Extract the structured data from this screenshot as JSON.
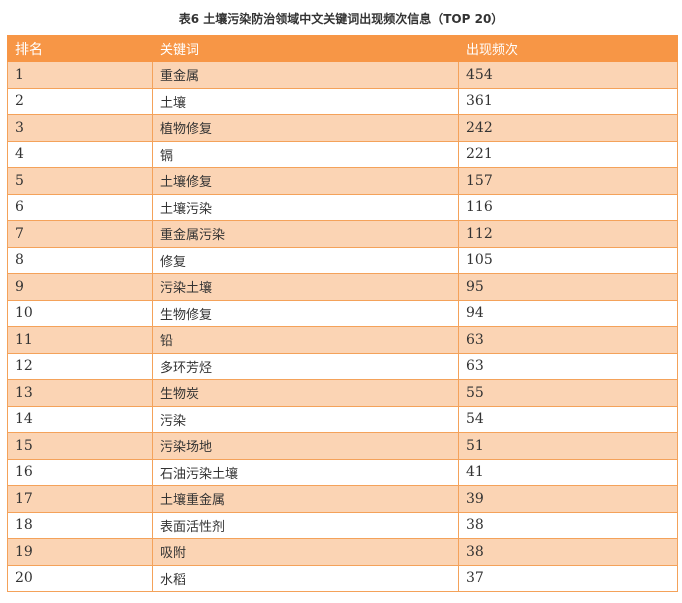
{
  "title": "表6  土壤污染防治领域中文关键词出现频次信息（TOP 20）",
  "colors": {
    "header_bg": "#f79646",
    "odd_row_bg": "#fbd4b4",
    "border": "#f4a25a"
  },
  "table": {
    "headers": [
      "排名",
      "关键词",
      "出现频次"
    ],
    "rows": [
      [
        "1",
        "重金属",
        "454"
      ],
      [
        "2",
        "土壤",
        "361"
      ],
      [
        "3",
        "植物修复",
        "242"
      ],
      [
        "4",
        "镉",
        "221"
      ],
      [
        "5",
        "土壤修复",
        "157"
      ],
      [
        "6",
        "土壤污染",
        "116"
      ],
      [
        "7",
        "重金属污染",
        "112"
      ],
      [
        "8",
        "修复",
        "105"
      ],
      [
        "9",
        "污染土壤",
        "95"
      ],
      [
        "10",
        "生物修复",
        "94"
      ],
      [
        "11",
        "铅",
        "63"
      ],
      [
        "12",
        "多环芳烃",
        "63"
      ],
      [
        "13",
        "生物炭",
        "55"
      ],
      [
        "14",
        "污染",
        "54"
      ],
      [
        "15",
        "污染场地",
        "51"
      ],
      [
        "16",
        "石油污染土壤",
        "41"
      ],
      [
        "17",
        "土壤重金属",
        "39"
      ],
      [
        "18",
        "表面活性剂",
        "38"
      ],
      [
        "19",
        "吸附",
        "38"
      ],
      [
        "20",
        "水稻",
        "37"
      ]
    ]
  }
}
